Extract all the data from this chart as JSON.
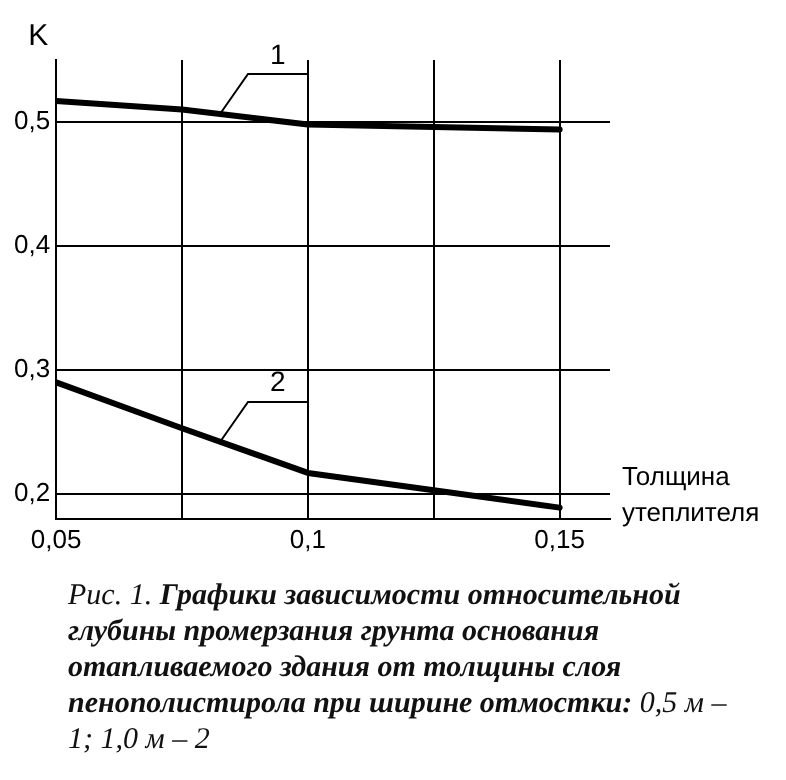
{
  "chart_data": {
    "type": "line",
    "ylabel": "K",
    "xlabel": "Толщина утеплителя",
    "x": [
      0.05,
      0.075,
      0.1,
      0.125,
      0.15
    ],
    "series": [
      {
        "name": "1",
        "color": "#000000",
        "values": [
          0.517,
          0.51,
          0.498,
          0.496,
          0.494
        ]
      },
      {
        "name": "2",
        "color": "#000000",
        "values": [
          0.29,
          0.253,
          0.217,
          0.203,
          0.189
        ]
      }
    ],
    "xlim": [
      0.05,
      0.16
    ],
    "ylim": [
      0.18,
      0.55
    ],
    "xticks": [
      {
        "value": 0.05,
        "label": "0,05"
      },
      {
        "value": 0.075,
        "label": null
      },
      {
        "value": 0.1,
        "label": "0,1"
      },
      {
        "value": 0.125,
        "label": null
      },
      {
        "value": 0.15,
        "label": "0,15"
      }
    ],
    "yticks": [
      {
        "value": 0.2,
        "label": "0,2"
      },
      {
        "value": 0.3,
        "label": "0,3"
      },
      {
        "value": 0.4,
        "label": "0,4"
      },
      {
        "value": 0.5,
        "label": "0,5"
      }
    ],
    "grid": true,
    "legend": false,
    "marker": "none",
    "line_style": "solid",
    "annotations": [
      "Рис. 1.",
      "Графики зависимости относительной глубины промерзания грунта основания отапливаемого здания от толщины слоя пенополистирола при ширине отмостки:",
      "0,5 м – 1; 1,0 м – 2"
    ]
  }
}
